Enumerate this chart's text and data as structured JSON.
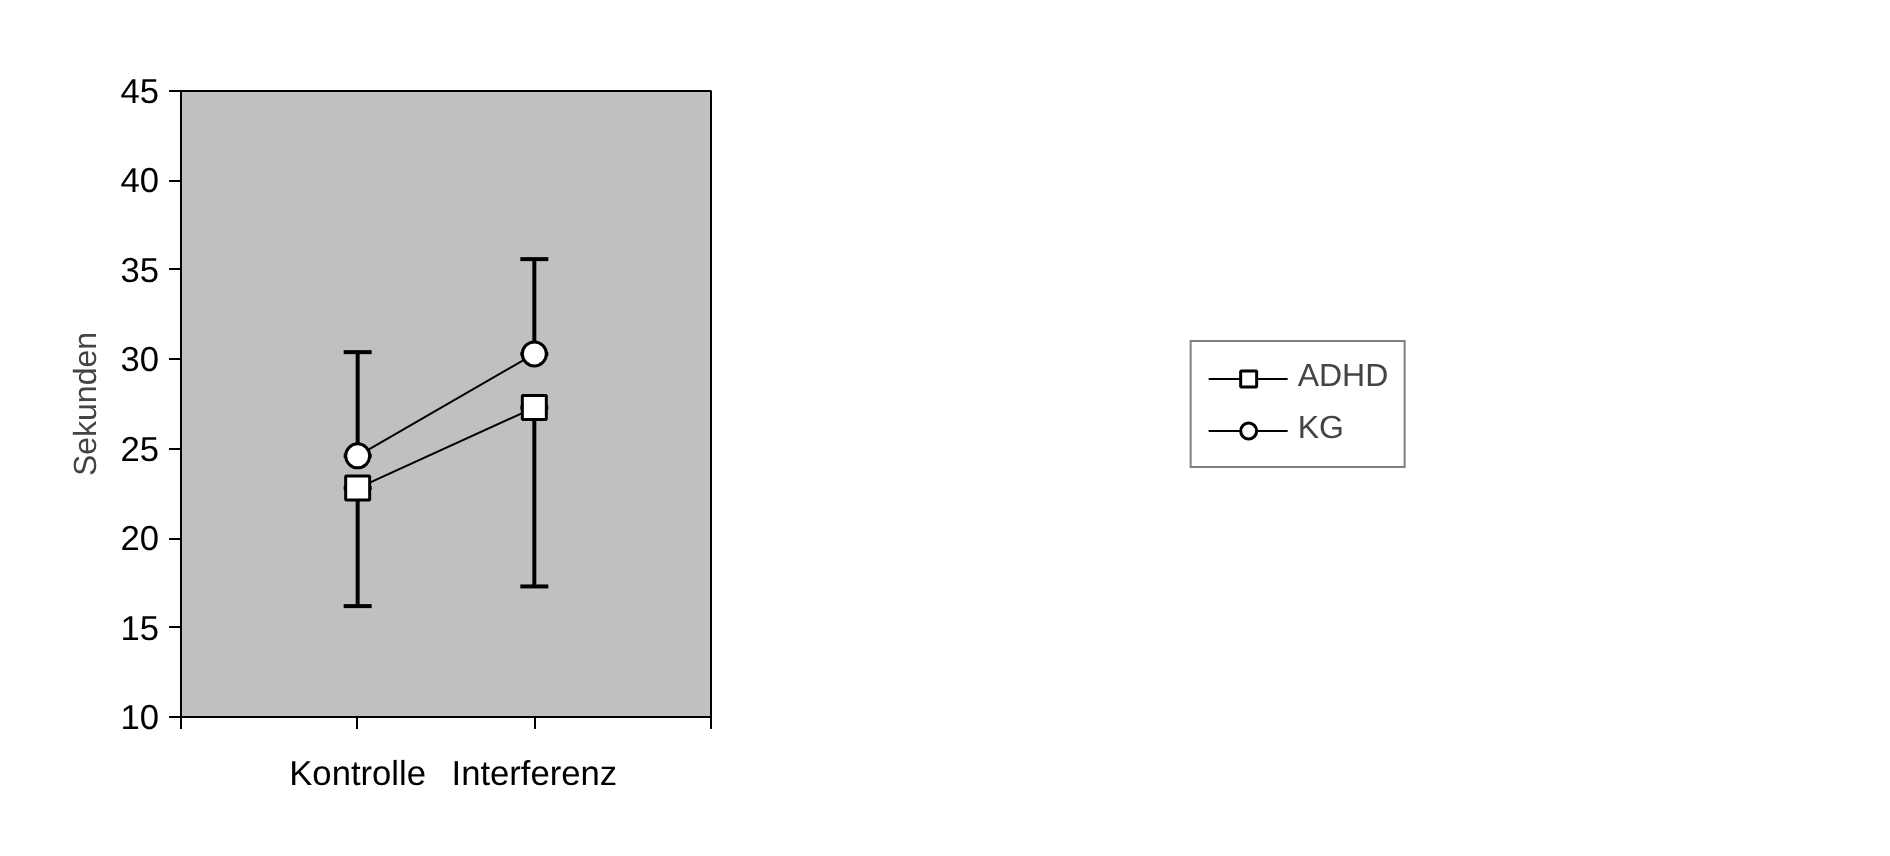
{
  "chart_data": {
    "type": "line",
    "ylabel": "Sekunden",
    "categories": [
      "Kontrolle",
      "Interferenz"
    ],
    "ylim": [
      10,
      45
    ],
    "yticks": [
      10,
      15,
      20,
      25,
      30,
      35,
      40,
      45
    ],
    "grid": false,
    "legend": "right",
    "series": [
      {
        "name": "ADHD",
        "color": "#000000",
        "marker": "square",
        "values": [
          22.8,
          27.3
        ],
        "errors": [
          [
            16.2,
            22.8
          ],
          [
            17.3,
            27.3
          ]
        ]
      },
      {
        "name": "KG",
        "color": "#000000",
        "marker": "circle",
        "values": [
          24.6,
          30.3
        ],
        "errors": [
          [
            24.6,
            30.4
          ],
          [
            30.3,
            35.6
          ]
        ]
      }
    ]
  }
}
